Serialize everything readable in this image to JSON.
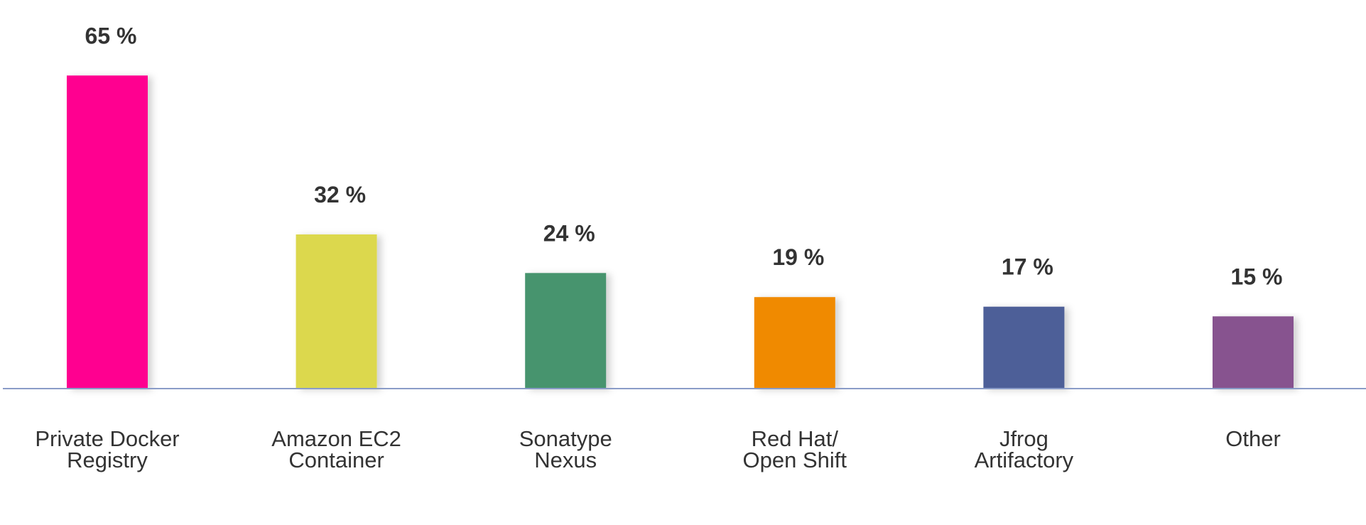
{
  "chart_data": {
    "type": "bar",
    "categories": [
      [
        "Private Docker",
        "Registry"
      ],
      [
        "Amazon EC2",
        "Container"
      ],
      [
        "Sonatype",
        "Nexus"
      ],
      [
        "Red Hat/",
        "Open Shift"
      ],
      [
        "Jfrog",
        "Artifactory"
      ],
      [
        "Other"
      ]
    ],
    "values": [
      65,
      32,
      24,
      19,
      17,
      15
    ],
    "value_labels": [
      "65 %",
      "32 %",
      "24 %",
      "19 %",
      "17 %",
      "15 %"
    ],
    "ylim": [
      0,
      70
    ],
    "grid": false,
    "legend": "none",
    "colors": [
      "#ff0090",
      "#dcd84e",
      "#46946e",
      "#f08a05",
      "#4e5e98",
      "#87528f"
    ],
    "axis_color": "#8a9cc8"
  }
}
